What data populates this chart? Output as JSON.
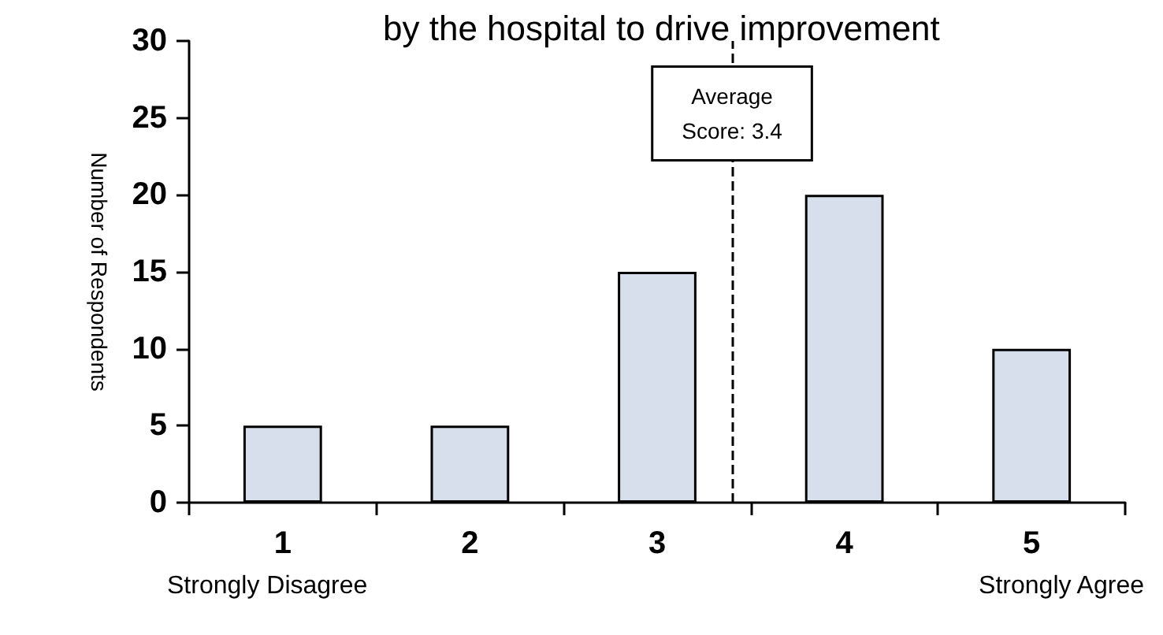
{
  "chart_data": {
    "type": "bar",
    "title": "by the hospital to drive improvement",
    "ylabel": "Number of Respondents",
    "x": [
      1,
      2,
      3,
      4,
      5
    ],
    "values": [
      5,
      5,
      15,
      20,
      10
    ],
    "color": "#d6dfeb",
    "xlim": [
      0.5,
      5.5
    ],
    "xticks": [
      {
        "value": 0.5,
        "label": null
      },
      1,
      {
        "value": 1.5,
        "label": null
      },
      2,
      {
        "value": 2.5,
        "label": null
      },
      3,
      {
        "value": 3.5,
        "label": null
      },
      4,
      {
        "value": 4.5,
        "label": null
      },
      5,
      {
        "value": 5.5,
        "label": null
      }
    ],
    "ylim": [
      0,
      30
    ],
    "yticks": [
      0,
      5,
      10,
      15,
      20,
      25,
      30
    ],
    "grid": false,
    "ref_lines": [
      {
        "axis": "x",
        "value": 3.4,
        "label": "Average Score: 3.4",
        "line_style": "dashed",
        "color": "#000000"
      }
    ],
    "annotations": [
      "Strongly Disagree",
      "Strongly Agree"
    ]
  }
}
